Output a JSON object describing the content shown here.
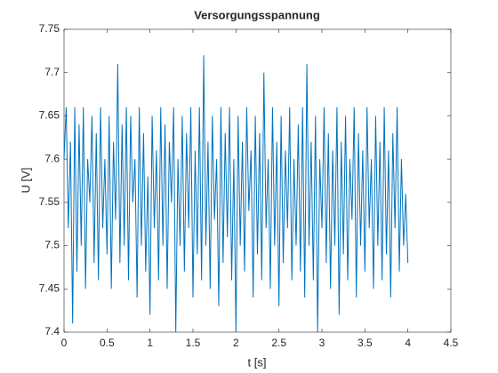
{
  "chart_data": {
    "type": "line",
    "title": "Versorgungsspannung",
    "xlabel": "t [s]",
    "ylabel": "U [V]",
    "x": [
      0,
      0.025,
      0.05,
      0.075,
      0.1,
      0.125,
      0.15,
      0.175,
      0.2,
      0.225,
      0.25,
      0.275,
      0.3,
      0.325,
      0.35,
      0.375,
      0.4,
      0.425,
      0.45,
      0.475,
      0.5,
      0.525,
      0.55,
      0.575,
      0.6,
      0.625,
      0.65,
      0.675,
      0.7,
      0.725,
      0.75,
      0.775,
      0.8,
      0.825,
      0.85,
      0.875,
      0.9,
      0.925,
      0.95,
      0.975,
      1,
      1.025,
      1.05,
      1.075,
      1.1,
      1.125,
      1.15,
      1.175,
      1.2,
      1.225,
      1.25,
      1.275,
      1.3,
      1.325,
      1.35,
      1.375,
      1.4,
      1.425,
      1.45,
      1.475,
      1.5,
      1.525,
      1.55,
      1.575,
      1.6,
      1.625,
      1.65,
      1.675,
      1.7,
      1.725,
      1.75,
      1.775,
      1.8,
      1.825,
      1.85,
      1.875,
      1.9,
      1.925,
      1.95,
      1.975,
      2,
      2.025,
      2.05,
      2.075,
      2.1,
      2.125,
      2.15,
      2.175,
      2.2,
      2.225,
      2.25,
      2.275,
      2.3,
      2.325,
      2.35,
      2.375,
      2.4,
      2.425,
      2.45,
      2.475,
      2.5,
      2.525,
      2.55,
      2.575,
      2.6,
      2.625,
      2.65,
      2.675,
      2.7,
      2.725,
      2.75,
      2.775,
      2.8,
      2.825,
      2.85,
      2.875,
      2.9,
      2.925,
      2.95,
      2.975,
      3,
      3.025,
      3.05,
      3.075,
      3.1,
      3.125,
      3.15,
      3.175,
      3.2,
      3.225,
      3.25,
      3.275,
      3.3,
      3.325,
      3.35,
      3.375,
      3.4,
      3.425,
      3.45,
      3.475,
      3.5,
      3.525,
      3.55,
      3.575,
      3.6,
      3.625,
      3.65,
      3.675,
      3.7,
      3.725,
      3.75,
      3.775,
      3.8,
      3.825,
      3.85,
      3.875,
      3.9,
      3.925,
      3.95,
      3.975,
      4
    ],
    "series": [
      {
        "color": "#0072bd",
        "values": [
          7.6,
          7.66,
          7.52,
          7.62,
          7.41,
          7.66,
          7.47,
          7.64,
          7.5,
          7.66,
          7.45,
          7.6,
          7.55,
          7.65,
          7.48,
          7.63,
          7.46,
          7.66,
          7.52,
          7.6,
          7.49,
          7.65,
          7.45,
          7.62,
          7.53,
          7.71,
          7.48,
          7.64,
          7.5,
          7.66,
          7.46,
          7.65,
          7.55,
          7.6,
          7.44,
          7.66,
          7.5,
          7.63,
          7.47,
          7.58,
          7.42,
          7.65,
          7.52,
          7.61,
          7.46,
          7.66,
          7.5,
          7.64,
          7.45,
          7.62,
          7.55,
          7.66,
          7.4,
          7.6,
          7.5,
          7.65,
          7.47,
          7.63,
          7.52,
          7.66,
          7.44,
          7.61,
          7.49,
          7.66,
          7.46,
          7.72,
          7.5,
          7.62,
          7.45,
          7.65,
          7.53,
          7.6,
          7.43,
          7.66,
          7.48,
          7.63,
          7.51,
          7.66,
          7.46,
          7.6,
          7.4,
          7.65,
          7.5,
          7.62,
          7.47,
          7.66,
          7.54,
          7.61,
          7.44,
          7.65,
          7.49,
          7.63,
          7.46,
          7.7,
          7.52,
          7.6,
          7.45,
          7.66,
          7.5,
          7.62,
          7.43,
          7.65,
          7.48,
          7.61,
          7.52,
          7.66,
          7.46,
          7.6,
          7.5,
          7.64,
          7.47,
          7.66,
          7.44,
          7.71,
          7.5,
          7.62,
          7.46,
          7.65,
          7.4,
          7.6,
          7.52,
          7.66,
          7.48,
          7.63,
          7.45,
          7.61,
          7.5,
          7.66,
          7.42,
          7.62,
          7.49,
          7.65,
          7.46,
          7.6,
          7.53,
          7.66,
          7.44,
          7.63,
          7.5,
          7.61,
          7.47,
          7.66,
          7.52,
          7.6,
          7.45,
          7.65,
          7.5,
          7.62,
          7.46,
          7.66,
          7.49,
          7.61,
          7.44,
          7.63,
          7.52,
          7.66,
          7.47,
          7.6,
          7.5,
          7.56,
          7.48
        ]
      }
    ],
    "xlim": [
      0,
      4.5
    ],
    "xticks": [
      0,
      0.5,
      1,
      1.5,
      2,
      2.5,
      3,
      3.5,
      4,
      4.5
    ],
    "ylim": [
      7.4,
      7.75
    ],
    "yticks": [
      7.4,
      7.45,
      7.5,
      7.55,
      7.6,
      7.65,
      7.7,
      7.75
    ]
  }
}
